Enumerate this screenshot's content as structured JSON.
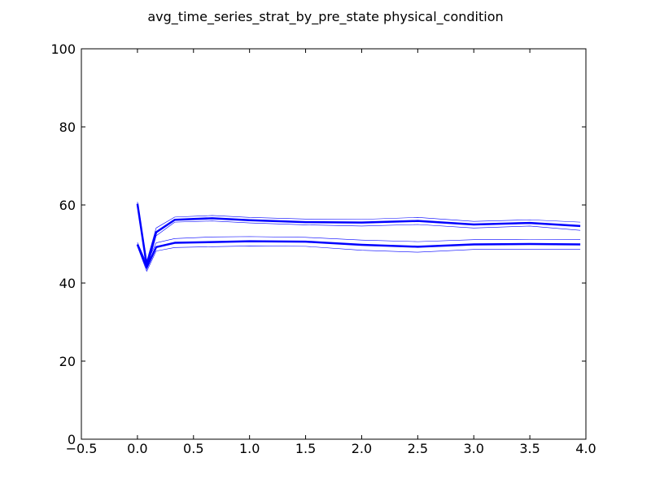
{
  "chart_data": {
    "type": "line",
    "title": "avg_time_series_strat_by_pre_state physical_condition",
    "xlabel": "",
    "ylabel": "",
    "xlim": [
      -0.5,
      4.0
    ],
    "ylim": [
      0,
      100
    ],
    "x_ticks": [
      "−0.5",
      "0.0",
      "0.5",
      "1.0",
      "1.5",
      "2.0",
      "2.5",
      "3.0",
      "3.5",
      "4.0"
    ],
    "y_ticks": [
      "0",
      "20",
      "40",
      "60",
      "80",
      "100"
    ],
    "grid": false,
    "legend": "none",
    "line_color": "#0000ff",
    "x": [
      0.0,
      0.083,
      0.167,
      0.333,
      0.667,
      1.0,
      1.5,
      2.0,
      2.5,
      3.0,
      3.5,
      3.95
    ],
    "series": [
      {
        "role": "mean",
        "values": [
          60.3,
          44.5,
          53.0,
          56.2,
          56.6,
          56.1,
          55.6,
          55.5,
          55.9,
          55.0,
          55.4,
          54.6
        ]
      },
      {
        "role": "upper-band",
        "values": [
          60.8,
          45.6,
          54.1,
          56.9,
          57.3,
          56.8,
          56.4,
          56.3,
          56.8,
          55.8,
          56.2,
          55.6
        ]
      },
      {
        "role": "lower-band",
        "values": [
          59.8,
          43.5,
          52.1,
          55.6,
          55.9,
          55.4,
          54.9,
          54.6,
          55.0,
          54.1,
          54.6,
          53.5
        ]
      },
      {
        "role": "mean",
        "values": [
          49.9,
          44.0,
          49.2,
          50.3,
          50.5,
          50.7,
          50.6,
          49.8,
          49.3,
          49.9,
          50.0,
          49.9
        ]
      },
      {
        "role": "upper-band",
        "values": [
          50.4,
          45.0,
          50.3,
          51.4,
          51.8,
          51.9,
          51.7,
          51.0,
          50.6,
          51.1,
          51.2,
          51.1
        ]
      },
      {
        "role": "lower-band",
        "values": [
          49.4,
          43.0,
          48.2,
          49.1,
          49.3,
          49.5,
          49.4,
          48.4,
          47.9,
          48.6,
          48.6,
          48.6
        ]
      }
    ]
  }
}
